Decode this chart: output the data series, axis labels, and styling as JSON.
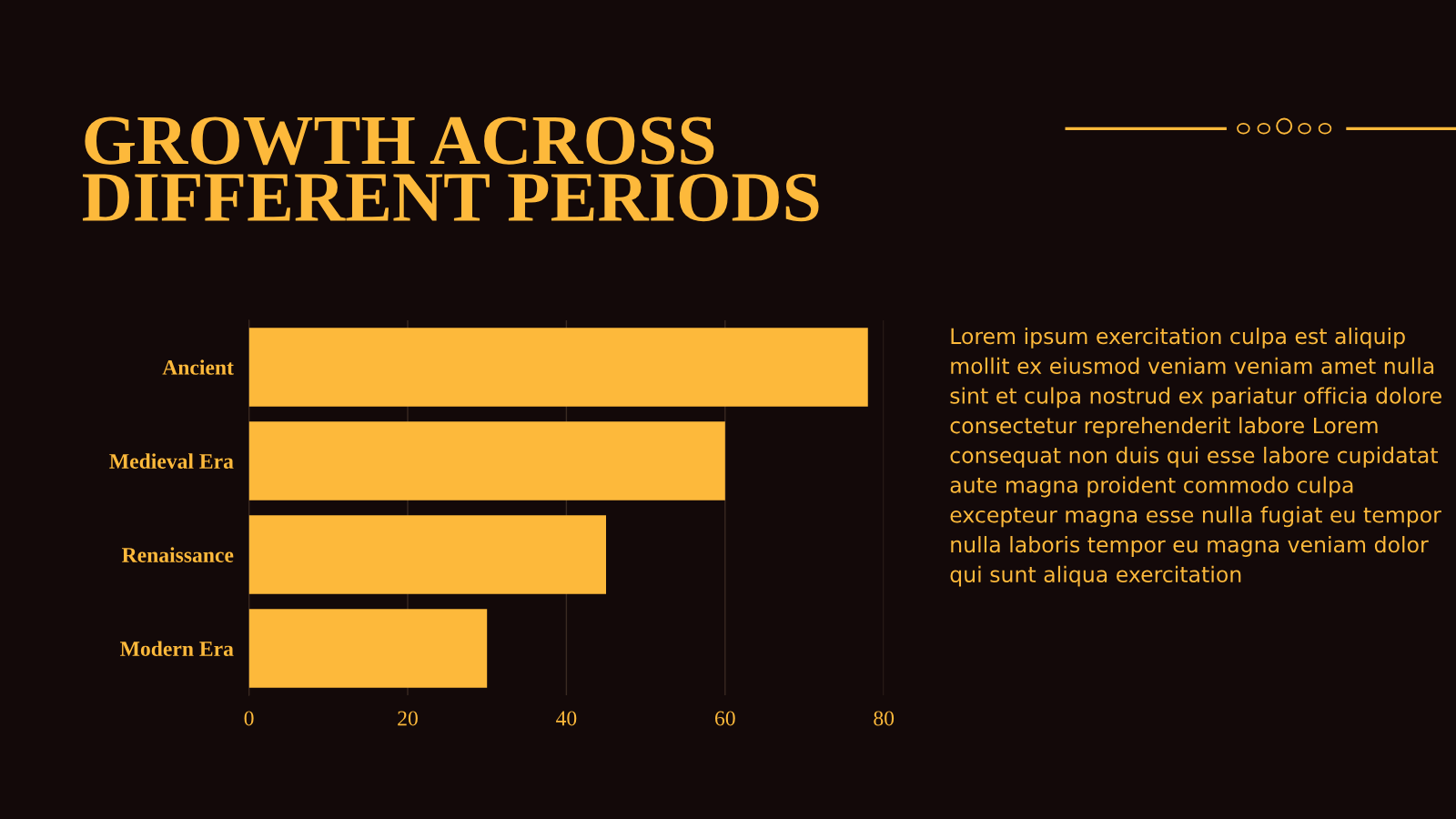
{
  "chart_data": {
    "type": "bar",
    "orientation": "horizontal",
    "title": "GROWTH ACROSS\nDIFFERENT PERIODS",
    "categories": [
      "Ancient",
      "Medieval Era",
      "Renaissance",
      "Modern Era"
    ],
    "values": [
      78,
      60,
      45,
      30
    ],
    "color": "#fdb93b",
    "xlim": [
      0,
      80
    ],
    "xticks": [
      0,
      20,
      40,
      60,
      80
    ],
    "grid": "x",
    "annotations": [
      "Lorem ipsum exercitation culpa est aliquip mollit ex eiusmod veniam veniam amet nulla sint et culpa nostrud ex pariatur officia dolore consectetur reprehenderit labore Lorem consequat non duis qui esse labore cupidatat aute magna proident commodo culpa excepteur magna esse nulla fugiat eu tempor nulla laboris tempor eu magna veniam dolor qui sunt aliqua exercitation"
    ]
  }
}
